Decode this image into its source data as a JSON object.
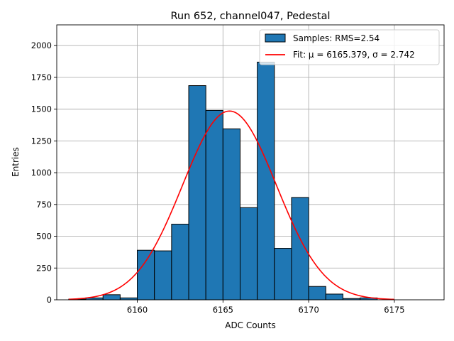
{
  "chart_data": {
    "type": "bar",
    "title": "Run 652, channel047, Pedestal",
    "xlabel": "ADC Counts",
    "ylabel": "Entries",
    "xlim": [
      6155.3,
      6177.9
    ],
    "ylim": [
      0,
      2163
    ],
    "x_ticks": [
      6160,
      6165,
      6170,
      6175
    ],
    "y_ticks": [
      0,
      250,
      500,
      750,
      1000,
      1250,
      1500,
      1750,
      2000
    ],
    "grid": true,
    "legend_position": "top-right",
    "histogram": {
      "name": "Samples: RMS=2.54",
      "color": "#1f77b4",
      "edgecolor": "#000000",
      "bin_edges": [
        6156,
        6157,
        6158,
        6159,
        6160,
        6161,
        6162,
        6163,
        6164,
        6165,
        6166,
        6167,
        6168,
        6169,
        6170,
        6171,
        6172,
        6173,
        6174
      ],
      "counts": [
        5,
        15,
        40,
        15,
        390,
        385,
        595,
        1685,
        1490,
        1345,
        725,
        1870,
        405,
        805,
        105,
        45,
        10,
        15
      ]
    },
    "fit": {
      "name": "Fit: μ = 6165.379, σ = 2.742",
      "color": "#ff0000",
      "mu": 6165.379,
      "sigma": 2.742,
      "amplitude": 1485,
      "x_range": [
        6156,
        6175
      ]
    }
  }
}
